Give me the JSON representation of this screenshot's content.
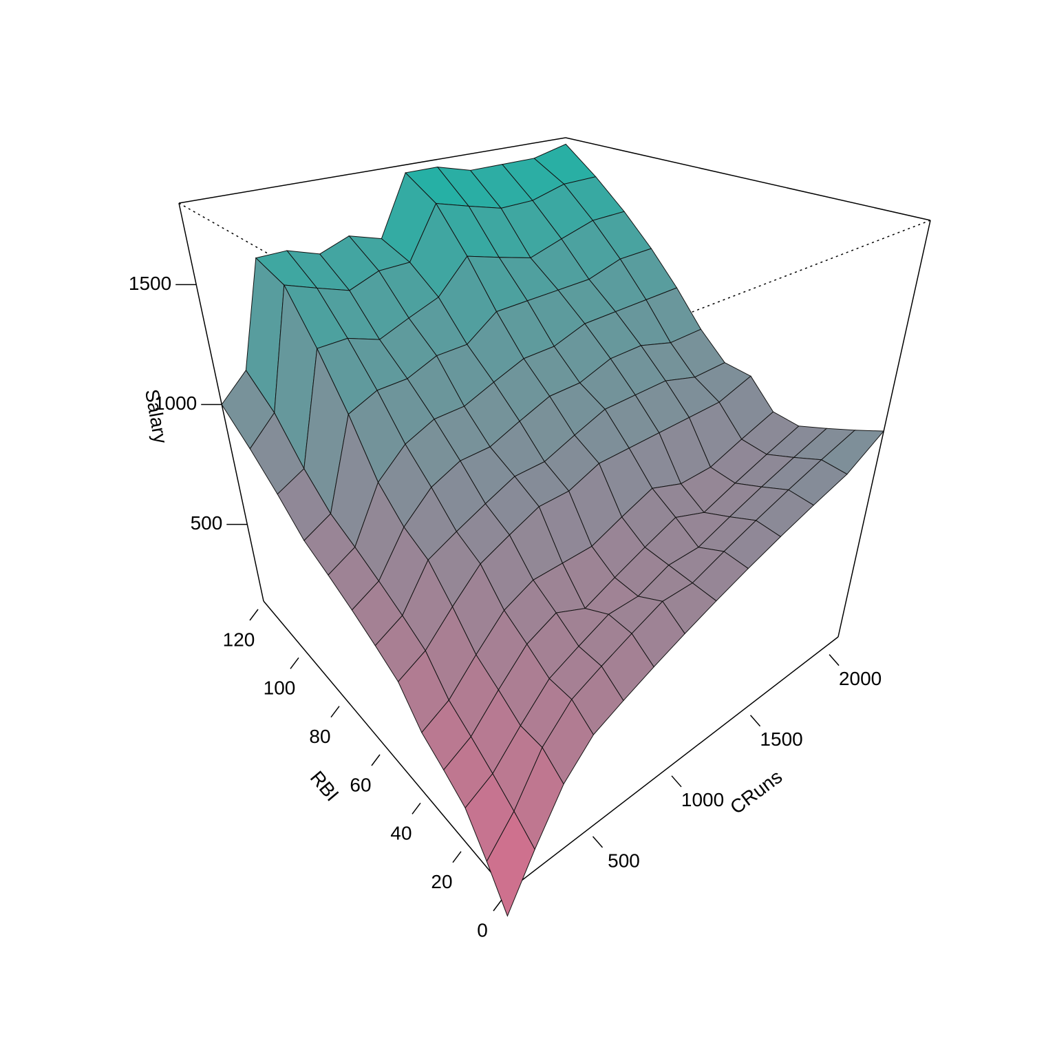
{
  "chart_data": {
    "type": "surface",
    "xlabel": "RBI",
    "ylabel": "CRuns",
    "zlabel": "Salary",
    "x": [
      0,
      10,
      20,
      30,
      40,
      50,
      60,
      70,
      80,
      90,
      100,
      110,
      120
    ],
    "y": [
      0,
      175,
      350,
      525,
      700,
      875,
      1050,
      1225,
      1400,
      1575,
      1750,
      1925,
      2100
    ],
    "z": [
      [
        100,
        250,
        400,
        500,
        550,
        600,
        650,
        700,
        750,
        800,
        850,
        900,
        1000
      ],
      [
        200,
        300,
        450,
        550,
        600,
        650,
        700,
        700,
        750,
        800,
        850,
        900,
        950
      ],
      [
        300,
        350,
        450,
        550,
        600,
        650,
        650,
        700,
        700,
        750,
        800,
        850,
        900
      ],
      [
        350,
        400,
        500,
        600,
        650,
        600,
        650,
        700,
        750,
        700,
        750,
        800,
        850
      ],
      [
        400,
        450,
        550,
        650,
        700,
        700,
        700,
        750,
        800,
        750,
        750,
        800,
        850
      ],
      [
        500,
        550,
        650,
        750,
        800,
        850,
        850,
        900,
        900,
        900,
        900,
        900,
        950
      ],
      [
        550,
        600,
        750,
        800,
        850,
        900,
        900,
        950,
        1000,
        1000,
        1000,
        950,
        950
      ],
      [
        600,
        650,
        800,
        900,
        950,
        950,
        1000,
        1050,
        1050,
        1100,
        1100,
        1050,
        1050
      ],
      [
        650,
        700,
        900,
        1000,
        1050,
        1050,
        1100,
        1150,
        1150,
        1200,
        1200,
        1200,
        1200
      ],
      [
        700,
        750,
        1100,
        1150,
        1150,
        1200,
        1200,
        1300,
        1300,
        1300,
        1300,
        1350,
        1350
      ],
      [
        800,
        850,
        1300,
        1300,
        1250,
        1300,
        1350,
        1500,
        1450,
        1400,
        1450,
        1500,
        1500
      ],
      [
        900,
        1000,
        1500,
        1450,
        1400,
        1450,
        1450,
        1700,
        1650,
        1600,
        1600,
        1650,
        1650
      ],
      [
        1000,
        1100,
        1550,
        1550,
        1500,
        1550,
        1500,
        1800,
        1800,
        1750,
        1750,
        1750,
        1800
      ]
    ],
    "xlim": [
      0,
      120
    ],
    "ylim": [
      0,
      2100
    ],
    "zlim": [
      180,
      1840
    ],
    "xticks": [
      0,
      20,
      40,
      60,
      80,
      100,
      120
    ],
    "yticks": [
      500,
      1000,
      1500,
      2000
    ],
    "zticks": [
      500,
      1000,
      1500
    ],
    "colors": {
      "low": "#d2708e",
      "high": "#1bb4a6"
    }
  }
}
